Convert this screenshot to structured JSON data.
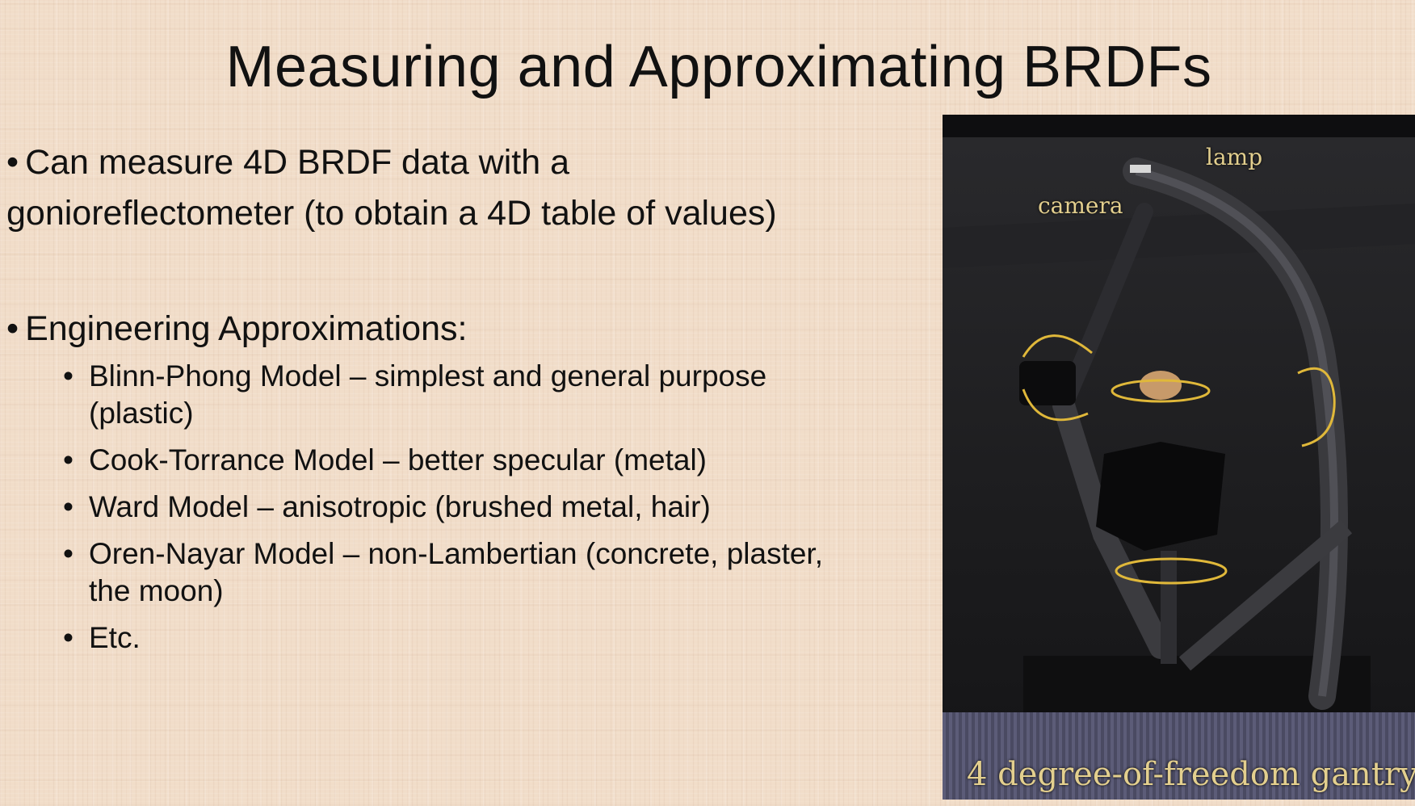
{
  "slide": {
    "title": "Measuring and Approximating BRDFs",
    "bullet_dot": "•",
    "bullets": [
      {
        "line1": "Can measure 4D BRDF data with a",
        "line2": "gonioreflectometer (to obtain a 4D table of values)"
      },
      {
        "line1": "Engineering Approximations:"
      }
    ],
    "sub_bullets": [
      {
        "line1": "Blinn-Phong Model – simplest and general purpose",
        "line2": "(plastic)"
      },
      {
        "line1": "Cook-Torrance Model – better specular (metal)"
      },
      {
        "line1": "Ward Model – anisotropic (brushed metal, hair)"
      },
      {
        "line1": "Oren-Nayar Model – non-Lambertian (concrete, plaster,",
        "line2": "the moon)"
      },
      {
        "line1": "Etc."
      }
    ]
  },
  "image": {
    "label_lamp": "lamp",
    "label_camera": "camera",
    "caption": "4 degree-of-freedom gantry",
    "colors": {
      "background": "#f1ddc9",
      "photo_dark": "#1b1b1d",
      "arrow_yellow": "#e0b83a",
      "label_text": "#e3cf8e"
    }
  }
}
